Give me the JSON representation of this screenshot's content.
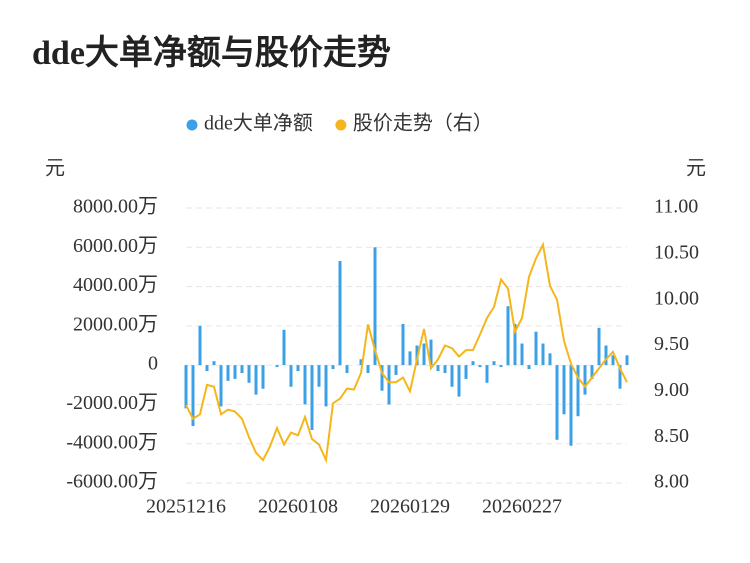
{
  "chart_data": {
    "type": "bar-line",
    "title": "dde大单净额与股价走势",
    "y_title": "元",
    "y2_title": "元",
    "categories": [
      "20251216",
      null,
      null,
      null,
      null,
      null,
      null,
      null,
      null,
      null,
      null,
      null,
      null,
      null,
      null,
      null,
      "20260108",
      null,
      null,
      null,
      null,
      null,
      null,
      null,
      null,
      null,
      null,
      null,
      null,
      null,
      null,
      null,
      "20260129",
      null,
      null,
      null,
      null,
      null,
      null,
      null,
      null,
      null,
      null,
      null,
      null,
      null,
      null,
      null,
      "20260227",
      null,
      null,
      null,
      null,
      null,
      null,
      null,
      null,
      null,
      null,
      null,
      null,
      null,
      null,
      null
    ],
    "series": [
      {
        "name": "dde大单净额",
        "color": "#3ba0e6",
        "type": "bar",
        "values": [
          -2200,
          -3100,
          2000,
          -300,
          200,
          -2100,
          -800,
          -700,
          -400,
          -900,
          -1500,
          -1200,
          0,
          -100,
          1800,
          -1100,
          -300,
          -2000,
          -3300,
          -1100,
          -2100,
          -200,
          5300,
          -400,
          0,
          300,
          -400,
          6000,
          -1300,
          -2000,
          -500,
          2100,
          700,
          1000,
          1100,
          1300,
          -300,
          -400,
          -1100,
          -1600,
          -700,
          200,
          -100,
          -900,
          200,
          -100,
          3000,
          2100,
          1100,
          -200,
          1700,
          1100,
          600,
          -3800,
          -2500,
          -4100,
          -2600,
          -1500,
          -700,
          1900,
          1000,
          500,
          -1200,
          500
        ]
      },
      {
        "name": "股价走势（右）",
        "color": "#f5b61c",
        "type": "line",
        "axis": "y2",
        "values": [
          8.85,
          8.7,
          8.75,
          9.07,
          9.05,
          8.75,
          8.8,
          8.78,
          8.7,
          8.5,
          8.33,
          8.25,
          8.4,
          8.6,
          8.42,
          8.55,
          8.52,
          8.72,
          8.48,
          8.42,
          8.25,
          8.87,
          8.92,
          9.03,
          9.02,
          9.2,
          9.73,
          9.45,
          9.2,
          9.1,
          9.1,
          9.15,
          9.0,
          9.35,
          9.68,
          9.25,
          9.35,
          9.5,
          9.47,
          9.38,
          9.45,
          9.45,
          9.62,
          9.8,
          9.92,
          10.22,
          10.12,
          9.65,
          9.8,
          10.25,
          10.45,
          10.6,
          10.15,
          10.0,
          9.55,
          9.3,
          9.15,
          9.05,
          9.15,
          9.25,
          9.35,
          9.43,
          9.25,
          9.1
        ]
      }
    ],
    "ylim": [
      -6000,
      8000
    ],
    "yticks": [
      {
        "value": -6000,
        "label": "-6000.00万"
      },
      {
        "value": -4000,
        "label": "-4000.00万"
      },
      {
        "value": -2000,
        "label": "-2000.00万"
      },
      0,
      {
        "value": 2000,
        "label": "2000.00万"
      },
      {
        "value": 4000,
        "label": "4000.00万"
      },
      {
        "value": 6000,
        "label": "6000.00万"
      },
      {
        "value": 8000,
        "label": "8000.00万"
      }
    ],
    "y2lim": [
      8,
      11
    ],
    "y2ticks": [
      {
        "value": 8,
        "label": "8.00"
      },
      {
        "value": 8.5,
        "label": "8.50"
      },
      {
        "value": 9,
        "label": "9.00"
      },
      {
        "value": 9.5,
        "label": "9.50"
      },
      {
        "value": 10,
        "label": "10.00"
      },
      {
        "value": 10.5,
        "label": "10.50"
      },
      {
        "value": 11,
        "label": "11.00"
      }
    ],
    "grid": true
  }
}
